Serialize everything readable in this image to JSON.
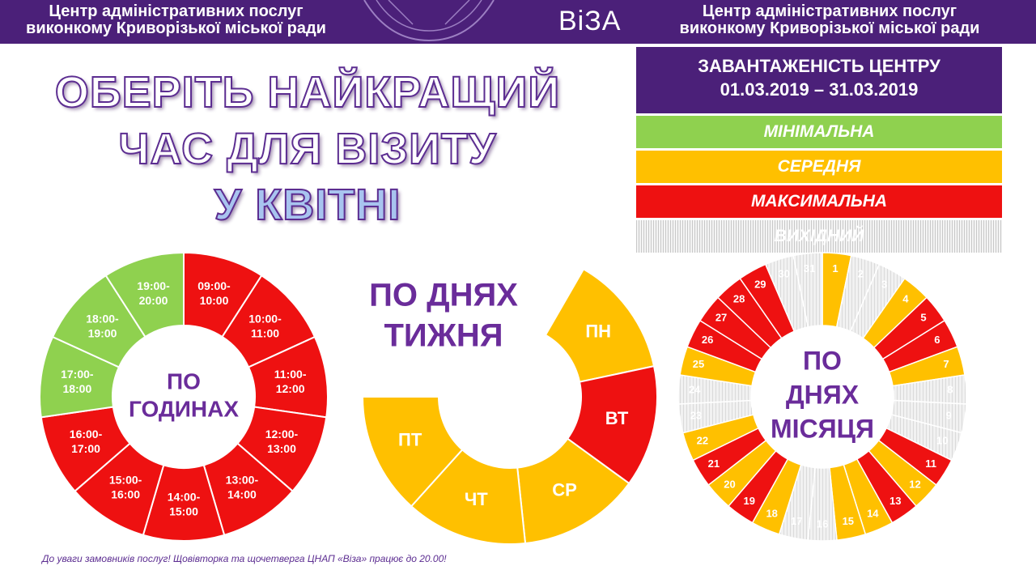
{
  "header": {
    "left_line1": "Центр адміністративних послуг",
    "left_line2": "виконкому Криворізької міської ради",
    "logo": "ВіЗА",
    "right_line1": "Центр адміністративних послуг",
    "right_line2": "виконкому Криворізької міської ради"
  },
  "title": {
    "line1": "ОБЕРІТЬ НАЙКРАЩИЙ",
    "line2": "ЧАС ДЛЯ ВІЗИТУ",
    "line3": "У КВІТНІ"
  },
  "legend": {
    "heading_line1": "ЗАВАНТАЖЕНІСТЬ ЦЕНТРУ",
    "heading_line2": "01.03.2019 – 31.03.2019",
    "minimal": "МІНІМАЛЬНА",
    "medium": "СЕРЕДНЯ",
    "maximal": "МАКСИМАЛЬНА",
    "day_off": "ВИХІДНИЙ"
  },
  "colors": {
    "min": "#8fd14f",
    "mid": "#ffc000",
    "max": "#ee1111",
    "off": "#e6e6e6",
    "brand": "#4b2079",
    "center_text": "#6a2c9a"
  },
  "chart_data": [
    {
      "type": "pie",
      "center_label": [
        "ПО",
        "ГОДИНАХ"
      ],
      "categories": [
        "09:00-10:00",
        "10:00-11:00",
        "11:00-12:00",
        "12:00-13:00",
        "13:00-14:00",
        "14:00-15:00",
        "15:00-16:00",
        "16:00-17:00",
        "17:00-18:00",
        "18:00-19:00",
        "19:00-20:00"
      ],
      "labels": [
        [
          "09:00-",
          "10:00"
        ],
        [
          "10:00-",
          "11:00"
        ],
        [
          "11:00-",
          "12:00"
        ],
        [
          "12:00-",
          "13:00"
        ],
        [
          "13:00-",
          "14:00"
        ],
        [
          "14:00-",
          "15:00"
        ],
        [
          "15:00-",
          "16:00"
        ],
        [
          "16:00-",
          "17:00"
        ],
        [
          "17:00-",
          "18:00"
        ],
        [
          "18:00-",
          "19:00"
        ],
        [
          "19:00-",
          "20:00"
        ]
      ],
      "load": [
        "max",
        "max",
        "max",
        "max",
        "max",
        "max",
        "max",
        "max",
        "min",
        "min",
        "min"
      ]
    },
    {
      "type": "pie",
      "center_label": [
        "ПО ДНЯХ",
        "ТИЖНЯ"
      ],
      "categories": [
        "ПН",
        "ВТ",
        "СР",
        "ЧТ",
        "ПТ"
      ],
      "load": [
        "mid",
        "max",
        "mid",
        "mid",
        "mid"
      ]
    },
    {
      "type": "pie",
      "center_label": [
        "ПО",
        "ДНЯХ",
        "МІСЯЦЯ"
      ],
      "categories": [
        "1",
        "2",
        "3",
        "4",
        "5",
        "6",
        "7",
        "8",
        "9",
        "10",
        "11",
        "12",
        "13",
        "14",
        "15",
        "16",
        "17",
        "18",
        "19",
        "20",
        "21",
        "22",
        "23",
        "24",
        "25",
        "26",
        "27",
        "28",
        "29",
        "30",
        "31"
      ],
      "load": [
        "mid",
        "off",
        "off",
        "mid",
        "max",
        "max",
        "mid",
        "off",
        "off",
        "off",
        "max",
        "mid",
        "max",
        "mid",
        "mid",
        "off",
        "off",
        "mid",
        "max",
        "mid",
        "max",
        "mid",
        "off",
        "off",
        "mid",
        "max",
        "max",
        "max",
        "max",
        "off",
        "off"
      ]
    }
  ],
  "footer": {
    "note": "До уваги замовників послуг!  Щовівторка та щочетверга ЦНАП «Віза» працює до 20.00!"
  }
}
